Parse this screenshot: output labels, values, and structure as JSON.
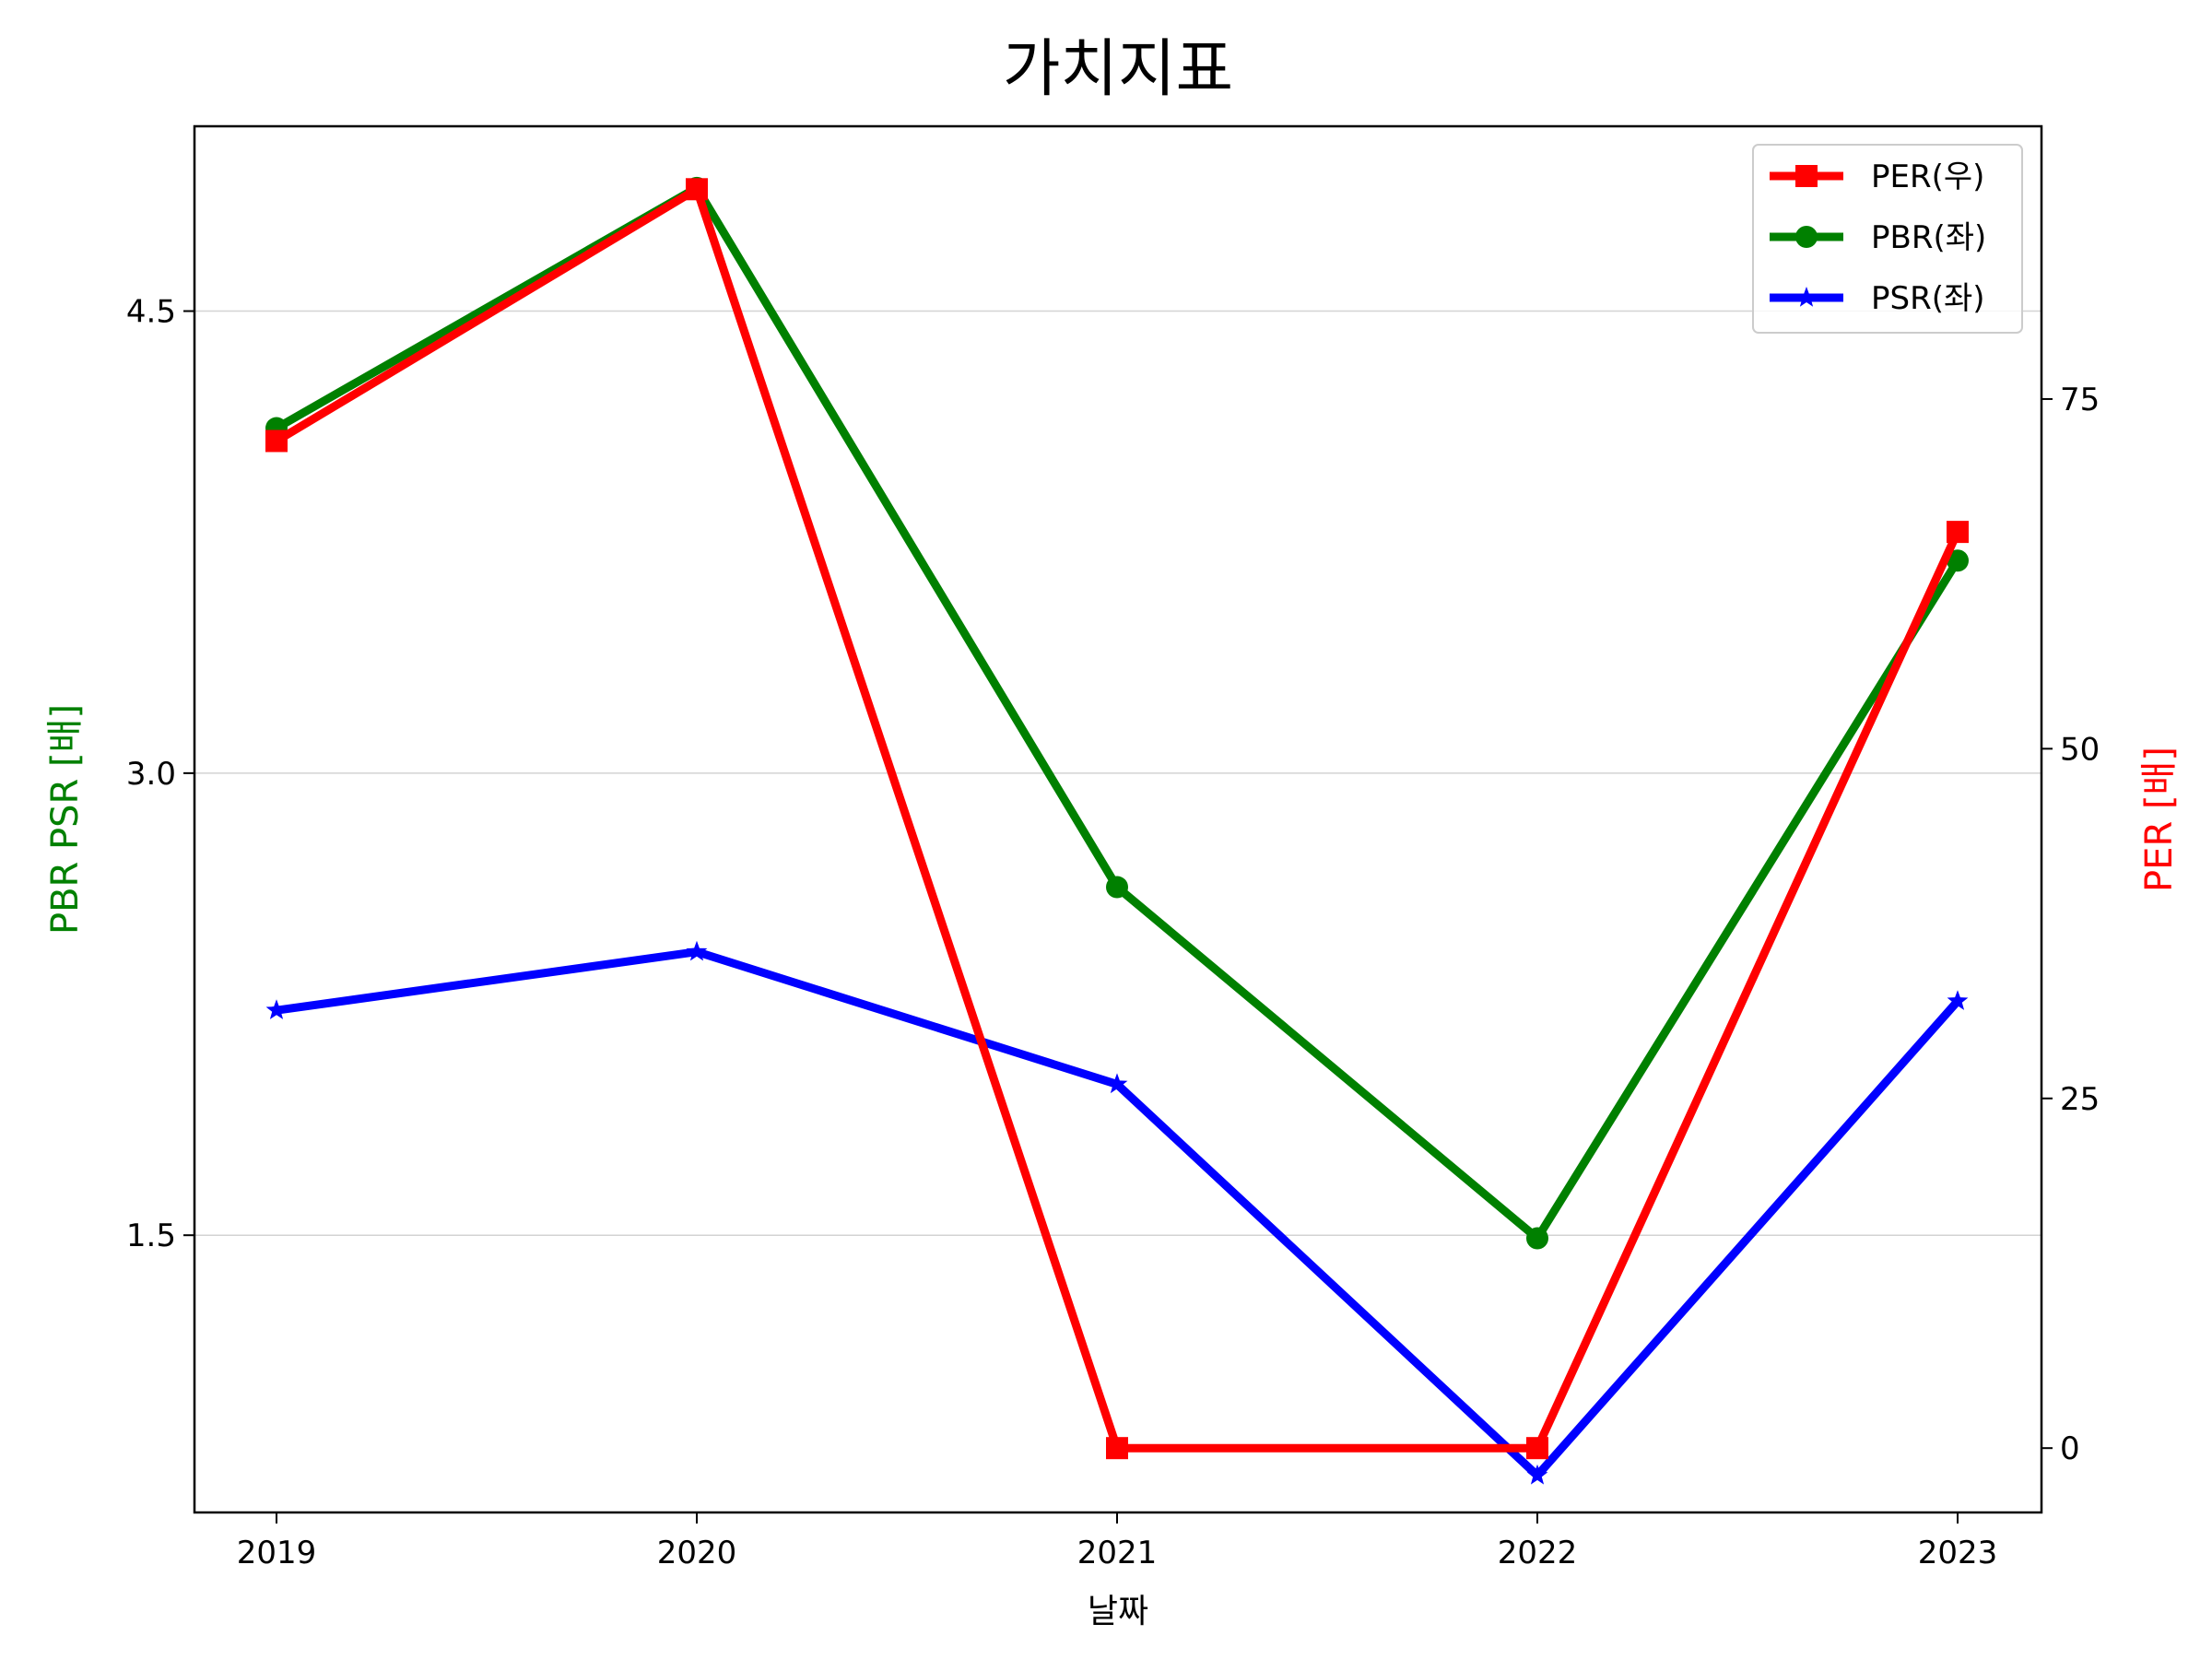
{
  "chart_data": {
    "type": "line",
    "title": "가치지표",
    "xlabel": "날짜",
    "ylabel_left": "PBR PSR [배]",
    "ylabel_right": "PER [배]",
    "ylabel_left_color": "#008000",
    "ylabel_right_color": "#ff0000",
    "categories": [
      "2019",
      "2020",
      "2021",
      "2022",
      "2023"
    ],
    "left_axis": {
      "ylim": [
        0.6,
        5.1
      ],
      "ticks": [
        1.5,
        3.0,
        4.5
      ],
      "tick_labels": [
        "1.5",
        "3.0",
        "4.5"
      ]
    },
    "right_axis": {
      "ylim": [
        -4.6,
        94.5
      ],
      "ticks": [
        0,
        25,
        50,
        75
      ],
      "tick_labels": [
        "0",
        "25",
        "50",
        "75"
      ]
    },
    "grid": "horizontal (left axis)",
    "legend_position": "top-right",
    "series": [
      {
        "name": "PER(우)",
        "axis": "right",
        "color": "#ff0000",
        "marker": "square",
        "values": [
          72.0,
          90.0,
          0.0,
          0.0,
          65.5
        ]
      },
      {
        "name": "PBR(좌)",
        "axis": "left",
        "color": "#008000",
        "marker": "circle",
        "values": [
          4.12,
          4.9,
          2.63,
          1.49,
          3.69
        ]
      },
      {
        "name": "PSR(좌)",
        "axis": "left",
        "color": "#0000ff",
        "marker": "star",
        "values": [
          2.23,
          2.42,
          1.99,
          0.72,
          2.26
        ]
      }
    ]
  }
}
